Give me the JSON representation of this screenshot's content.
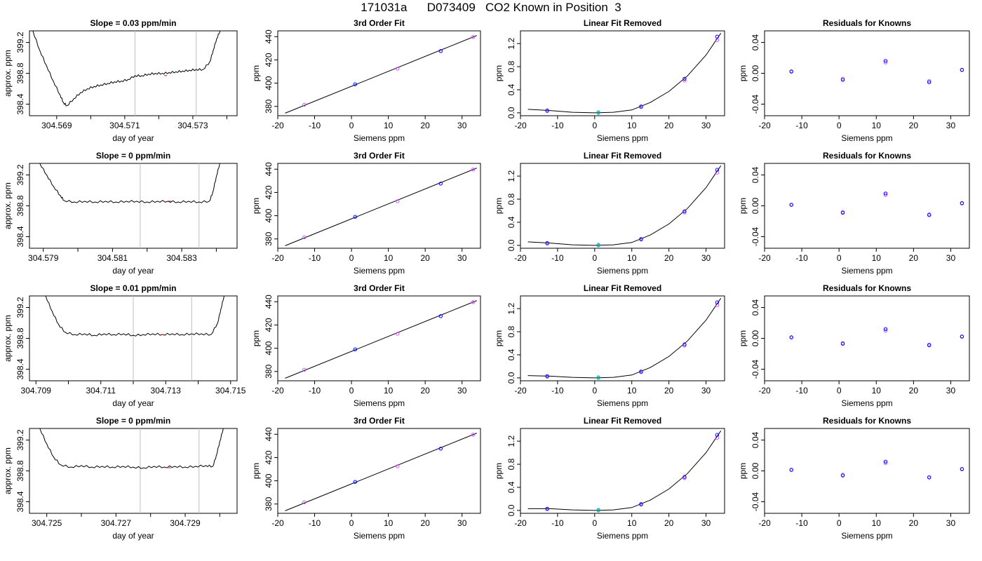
{
  "page": {
    "title": "171031a      D073409   CO2 Known in Position  3"
  },
  "chart_data": [
    {
      "row": 1,
      "col": 1,
      "type": "line",
      "title": "Slope =  0.03  ppm/min",
      "xlabel": "day of year",
      "ylabel": "approx. ppm",
      "xlim": [
        304.5682,
        304.5743
      ],
      "ylim": [
        398.25,
        399.35
      ],
      "xticks": [
        304.569,
        304.57,
        304.571,
        304.572,
        304.573,
        304.574
      ],
      "xtick_labels": [
        "304.569",
        "",
        "304.571",
        "",
        "304.573",
        ""
      ],
      "yticks": [
        398.4,
        398.8,
        399.2
      ],
      "ytick_labels": [
        "398.4",
        "398.8",
        "399.2"
      ],
      "vlines": [
        304.5713,
        304.5731
      ],
      "x": [
        304.5693,
        304.5695,
        304.5697,
        304.5699,
        304.5701,
        304.5703,
        304.5705,
        304.5707,
        304.5709,
        304.5711,
        304.5713,
        304.5715,
        304.5717,
        304.5719,
        304.5721,
        304.5723,
        304.5725,
        304.5727,
        304.5729,
        304.5731,
        304.5733
      ],
      "y": [
        398.38,
        398.47,
        398.55,
        398.6,
        398.63,
        398.65,
        398.67,
        398.69,
        398.7,
        398.72,
        398.77,
        398.77,
        398.79,
        398.8,
        398.8,
        398.81,
        398.82,
        398.83,
        398.84,
        398.85,
        398.85
      ],
      "pre": {
        "x": [
          304.5683,
          304.5685,
          304.5687,
          304.5689,
          304.5691,
          304.5692,
          304.5693
        ],
        "y": [
          399.35,
          399.1,
          398.9,
          398.7,
          398.52,
          398.42,
          398.38
        ]
      },
      "post": {
        "x": [
          304.5733,
          304.5735,
          304.5736,
          304.5737,
          304.5738
        ],
        "y": [
          398.85,
          398.95,
          399.1,
          399.25,
          399.35
        ]
      }
    },
    {
      "row": 1,
      "col": 2,
      "type": "scatter",
      "title": "3rd Order Fit",
      "xlabel": "Siemens ppm",
      "ylabel": "ppm",
      "xlim": [
        -20,
        35
      ],
      "ylim": [
        372,
        445
      ],
      "xticks": [
        -20,
        -10,
        0,
        10,
        20,
        30
      ],
      "yticks": [
        380,
        400,
        420,
        440
      ],
      "x": [
        -12.8,
        1.0,
        12.5,
        24.2,
        33.0
      ],
      "y": [
        381.5,
        399.0,
        412.5,
        427.6,
        439.7
      ],
      "fit": {
        "x": [
          -18,
          34
        ],
        "y": [
          374.2,
          441.0
        ]
      }
    },
    {
      "row": 1,
      "col": 3,
      "type": "scatter",
      "title": "Linear Fit Removed",
      "xlabel": "Siemens ppm",
      "ylabel": "ppm",
      "xlim": [
        -20,
        35
      ],
      "ylim": [
        -0.05,
        1.42
      ],
      "xticks": [
        -20,
        -10,
        0,
        10,
        20,
        30
      ],
      "yticks": [
        0.0,
        0.4,
        0.8,
        1.2
      ],
      "x": [
        -12.8,
        -12.8,
        1.0,
        1.0,
        12.5,
        12.5,
        24.2,
        24.2,
        33.0,
        33.0
      ],
      "y": [
        0.03,
        0.04,
        0.0,
        0.01,
        0.1,
        0.11,
        0.56,
        0.59,
        1.26,
        1.32
      ],
      "fit": {
        "x": [
          -18,
          -12,
          -6,
          0,
          5,
          10,
          15,
          20,
          25,
          30,
          34
        ],
        "y": [
          0.06,
          0.04,
          0.01,
          0.0,
          0.01,
          0.05,
          0.18,
          0.37,
          0.64,
          1.0,
          1.38
        ]
      }
    },
    {
      "row": 1,
      "col": 4,
      "type": "scatter",
      "title": "Residuals for Knowns",
      "xlabel": "Siemens ppm",
      "ylabel": "ppm",
      "xlim": [
        -20,
        35
      ],
      "ylim": [
        -0.055,
        0.055
      ],
      "xticks": [
        -20,
        -10,
        0,
        10,
        20,
        30
      ],
      "yticks": [
        -0.04,
        0.0,
        0.04
      ],
      "x": [
        -12.8,
        -12.8,
        1.0,
        1.0,
        12.5,
        12.5,
        24.2,
        24.2,
        33.0,
        33.0
      ],
      "y": [
        0.002,
        0.0025,
        -0.007,
        -0.0085,
        0.014,
        0.016,
        -0.01,
        -0.0115,
        0.004,
        0.0045
      ]
    },
    {
      "row": 2,
      "col": 1,
      "type": "line",
      "title": "Slope =  0  ppm/min",
      "xlabel": "day of year",
      "ylabel": "approx. ppm",
      "xlim": [
        304.5786,
        304.5846
      ],
      "ylim": [
        398.25,
        399.35
      ],
      "xticks": [
        304.579,
        304.58,
        304.581,
        304.582,
        304.583,
        304.584
      ],
      "xtick_labels": [
        "304.579",
        "",
        "304.581",
        "",
        "304.583",
        ""
      ],
      "yticks": [
        398.4,
        398.8,
        399.2
      ],
      "ytick_labels": [
        "398.4",
        "398.8",
        "399.2"
      ],
      "vlines": [
        304.5818,
        304.5835
      ],
      "x": [
        304.5796,
        304.5799,
        304.5802,
        304.5805,
        304.5808,
        304.5811,
        304.5814,
        304.5817,
        304.582,
        304.5823,
        304.5826,
        304.5829,
        304.5832,
        304.5835,
        304.5838
      ],
      "y": [
        398.87,
        398.85,
        398.86,
        398.85,
        398.86,
        398.85,
        398.86,
        398.86,
        398.85,
        398.86,
        398.86,
        398.85,
        398.86,
        398.85,
        398.86
      ],
      "pre": {
        "x": [
          304.5789,
          304.5791,
          304.5793,
          304.5795,
          304.5796
        ],
        "y": [
          399.35,
          399.2,
          399.05,
          398.93,
          398.87
        ]
      },
      "post": {
        "x": [
          304.5838,
          304.5839,
          304.584,
          304.5841
        ],
        "y": [
          398.86,
          398.98,
          399.18,
          399.35
        ]
      }
    },
    {
      "row": 2,
      "col": 2,
      "type": "scatter",
      "title": "3rd Order Fit",
      "xlabel": "Siemens ppm",
      "ylabel": "ppm",
      "xlim": [
        -20,
        35
      ],
      "ylim": [
        372,
        445
      ],
      "xticks": [
        -20,
        -10,
        0,
        10,
        20,
        30
      ],
      "yticks": [
        380,
        400,
        420,
        440
      ],
      "x": [
        -12.8,
        1.0,
        12.5,
        24.2,
        33.0
      ],
      "y": [
        381.5,
        399.0,
        412.5,
        427.6,
        439.7
      ],
      "fit": {
        "x": [
          -18,
          34
        ],
        "y": [
          374.2,
          441.0
        ]
      }
    },
    {
      "row": 2,
      "col": 3,
      "type": "scatter",
      "title": "Linear Fit Removed",
      "xlabel": "Siemens ppm",
      "ylabel": "ppm",
      "xlim": [
        -20,
        35
      ],
      "ylim": [
        -0.05,
        1.42
      ],
      "xticks": [
        -20,
        -10,
        0,
        10,
        20,
        30
      ],
      "yticks": [
        0.0,
        0.4,
        0.8,
        1.2
      ],
      "x": [
        -12.8,
        -12.8,
        1.0,
        1.0,
        12.5,
        12.5,
        24.2,
        24.2,
        33.0,
        33.0
      ],
      "y": [
        0.03,
        0.04,
        0.0,
        0.01,
        0.1,
        0.11,
        0.57,
        0.59,
        1.26,
        1.31
      ],
      "fit": {
        "x": [
          -18,
          -12,
          -6,
          0,
          5,
          10,
          15,
          20,
          25,
          30,
          34
        ],
        "y": [
          0.06,
          0.04,
          0.01,
          0.0,
          0.01,
          0.05,
          0.18,
          0.37,
          0.64,
          1.0,
          1.38
        ]
      }
    },
    {
      "row": 2,
      "col": 4,
      "type": "scatter",
      "title": "Residuals for Knowns",
      "xlabel": "Siemens ppm",
      "ylabel": "ppm",
      "xlim": [
        -20,
        35
      ],
      "ylim": [
        -0.055,
        0.055
      ],
      "xticks": [
        -20,
        -10,
        0,
        10,
        20,
        30
      ],
      "yticks": [
        -0.04,
        0.0,
        0.04
      ],
      "x": [
        -12.8,
        -12.8,
        1.0,
        1.0,
        12.5,
        12.5,
        24.2,
        24.2,
        33.0,
        33.0
      ],
      "y": [
        0.001,
        0.0015,
        -0.008,
        -0.009,
        0.014,
        0.016,
        -0.011,
        -0.012,
        0.003,
        0.0035
      ]
    },
    {
      "row": 3,
      "col": 1,
      "type": "line",
      "title": "Slope =  0.01  ppm/min",
      "xlabel": "day of year",
      "ylabel": "approx. ppm",
      "xlim": [
        304.7088,
        304.7152
      ],
      "ylim": [
        398.25,
        399.35
      ],
      "xticks": [
        304.709,
        304.71,
        304.711,
        304.712,
        304.713,
        304.714,
        304.715
      ],
      "xtick_labels": [
        "304.709",
        "",
        "304.711",
        "",
        "304.713",
        "",
        "304.715"
      ],
      "yticks": [
        398.4,
        398.8,
        399.2
      ],
      "ytick_labels": [
        "398.4",
        "398.8",
        "399.2"
      ],
      "vlines": [
        304.712,
        304.7138
      ],
      "x": [
        304.7099,
        304.7102,
        304.7105,
        304.7108,
        304.7111,
        304.7114,
        304.7117,
        304.712,
        304.7123,
        304.7126,
        304.7129,
        304.7132,
        304.7135,
        304.7138,
        304.7141,
        304.7144
      ],
      "y": [
        398.88,
        398.85,
        398.86,
        398.84,
        398.86,
        398.85,
        398.86,
        398.84,
        398.85,
        398.86,
        398.85,
        398.86,
        398.85,
        398.86,
        398.86,
        398.85
      ],
      "pre": {
        "x": [
          304.7093,
          304.7095,
          304.7097,
          304.7099
        ],
        "y": [
          399.35,
          399.15,
          398.98,
          398.88
        ]
      },
      "post": {
        "x": [
          304.7144,
          304.7146,
          304.7147,
          304.7148
        ],
        "y": [
          398.85,
          399.0,
          399.18,
          399.35
        ]
      }
    },
    {
      "row": 3,
      "col": 2,
      "type": "scatter",
      "title": "3rd Order Fit",
      "xlabel": "Siemens ppm",
      "ylabel": "ppm",
      "xlim": [
        -20,
        35
      ],
      "ylim": [
        372,
        445
      ],
      "xticks": [
        -20,
        -10,
        0,
        10,
        20,
        30
      ],
      "yticks": [
        380,
        400,
        420,
        440
      ],
      "x": [
        -12.8,
        1.0,
        12.5,
        24.2,
        33.0
      ],
      "y": [
        381.5,
        399.0,
        412.5,
        427.6,
        439.7
      ],
      "fit": {
        "x": [
          -18,
          34
        ],
        "y": [
          374.2,
          441.0
        ]
      }
    },
    {
      "row": 3,
      "col": 3,
      "type": "scatter",
      "title": "Linear Fit Removed",
      "xlabel": "Siemens ppm",
      "ylabel": "ppm",
      "xlim": [
        -20,
        35
      ],
      "ylim": [
        -0.05,
        1.42
      ],
      "xticks": [
        -20,
        -10,
        0,
        10,
        20,
        30
      ],
      "yticks": [
        0.0,
        0.4,
        0.8,
        1.2
      ],
      "x": [
        -12.8,
        -12.8,
        1.0,
        1.0,
        12.5,
        12.5,
        24.2,
        24.2,
        33.0,
        33.0
      ],
      "y": [
        0.02,
        0.03,
        0.0,
        0.01,
        0.1,
        0.11,
        0.56,
        0.58,
        1.26,
        1.31
      ],
      "fit": {
        "x": [
          -18,
          -12,
          -6,
          0,
          5,
          10,
          15,
          20,
          25,
          30,
          34
        ],
        "y": [
          0.04,
          0.03,
          0.01,
          0.0,
          0.01,
          0.05,
          0.18,
          0.37,
          0.64,
          1.0,
          1.38
        ]
      }
    },
    {
      "row": 3,
      "col": 4,
      "type": "scatter",
      "title": "Residuals for Knowns",
      "xlabel": "Siemens ppm",
      "ylabel": "ppm",
      "xlim": [
        -20,
        35
      ],
      "ylim": [
        -0.055,
        0.055
      ],
      "xticks": [
        -20,
        -10,
        0,
        10,
        20,
        30
      ],
      "yticks": [
        -0.04,
        0.0,
        0.04
      ],
      "x": [
        -12.8,
        -12.8,
        1.0,
        1.0,
        12.5,
        12.5,
        24.2,
        24.2,
        33.0,
        33.0
      ],
      "y": [
        0.001,
        0.0015,
        -0.006,
        -0.007,
        0.01,
        0.012,
        -0.008,
        -0.009,
        0.002,
        0.0025
      ]
    },
    {
      "row": 4,
      "col": 1,
      "type": "line",
      "title": "Slope =  0  ppm/min",
      "xlabel": "day of year",
      "ylabel": "approx. ppm",
      "xlim": [
        304.7245,
        304.7305
      ],
      "ylim": [
        398.25,
        399.35
      ],
      "xticks": [
        304.725,
        304.726,
        304.727,
        304.728,
        304.729,
        304.73
      ],
      "xtick_labels": [
        "304.725",
        "",
        "304.727",
        "",
        "304.729",
        ""
      ],
      "yticks": [
        398.4,
        398.8,
        399.2
      ],
      "ytick_labels": [
        "398.4",
        "398.8",
        "399.2"
      ],
      "vlines": [
        304.7277,
        304.7294
      ],
      "x": [
        304.7254,
        304.7257,
        304.726,
        304.7263,
        304.7266,
        304.7269,
        304.7272,
        304.7275,
        304.7278,
        304.7281,
        304.7284,
        304.7287,
        304.729,
        304.7293,
        304.7296,
        304.7298
      ],
      "y": [
        398.88,
        398.85,
        398.87,
        398.85,
        398.86,
        398.85,
        398.86,
        398.85,
        398.84,
        398.86,
        398.85,
        398.86,
        398.85,
        398.86,
        398.87,
        398.86
      ],
      "pre": {
        "x": [
          304.7248,
          304.725,
          304.7252,
          304.7254
        ],
        "y": [
          399.35,
          399.15,
          398.98,
          398.88
        ]
      },
      "post": {
        "x": [
          304.7298,
          304.7299,
          304.73,
          304.7301
        ],
        "y": [
          398.86,
          399.0,
          399.18,
          399.35
        ]
      }
    },
    {
      "row": 4,
      "col": 2,
      "type": "scatter",
      "title": "3rd Order Fit",
      "xlabel": "Siemens ppm",
      "ylabel": "ppm",
      "xlim": [
        -20,
        35
      ],
      "ylim": [
        372,
        445
      ],
      "xticks": [
        -20,
        -10,
        0,
        10,
        20,
        30
      ],
      "yticks": [
        380,
        400,
        420,
        440
      ],
      "x": [
        -12.8,
        1.0,
        12.5,
        24.2,
        33.0
      ],
      "y": [
        381.5,
        399.0,
        412.5,
        427.6,
        439.7
      ],
      "fit": {
        "x": [
          -18,
          34
        ],
        "y": [
          374.2,
          441.0
        ]
      }
    },
    {
      "row": 4,
      "col": 3,
      "type": "scatter",
      "title": "Linear Fit Removed",
      "xlabel": "Siemens ppm",
      "ylabel": "ppm",
      "xlim": [
        -20,
        35
      ],
      "ylim": [
        -0.05,
        1.42
      ],
      "xticks": [
        -20,
        -10,
        0,
        10,
        20,
        30
      ],
      "yticks": [
        0.0,
        0.4,
        0.8,
        1.2
      ],
      "x": [
        -12.8,
        -12.8,
        1.0,
        1.0,
        12.5,
        12.5,
        24.2,
        24.2,
        33.0,
        33.0
      ],
      "y": [
        0.02,
        0.03,
        0.0,
        0.01,
        0.1,
        0.11,
        0.56,
        0.58,
        1.26,
        1.31
      ],
      "fit": {
        "x": [
          -18,
          -12,
          -6,
          0,
          5,
          10,
          15,
          20,
          25,
          30,
          34
        ],
        "y": [
          0.03,
          0.03,
          0.01,
          0.0,
          0.01,
          0.05,
          0.18,
          0.37,
          0.64,
          1.0,
          1.38
        ]
      }
    },
    {
      "row": 4,
      "col": 4,
      "type": "scatter",
      "title": "Residuals for Knowns",
      "xlabel": "Siemens ppm",
      "ylabel": "ppm",
      "xlim": [
        -20,
        35
      ],
      "ylim": [
        -0.055,
        0.055
      ],
      "xticks": [
        -20,
        -10,
        0,
        10,
        20,
        30
      ],
      "yticks": [
        -0.04,
        0.0,
        0.04
      ],
      "x": [
        -12.8,
        -12.8,
        1.0,
        1.0,
        12.5,
        12.5,
        24.2,
        24.2,
        33.0,
        33.0
      ],
      "y": [
        0.001,
        0.0015,
        -0.005,
        -0.006,
        0.01,
        0.012,
        -0.008,
        -0.0085,
        0.002,
        0.0025
      ]
    }
  ],
  "colors": {
    "axis": "#000000",
    "line": "#000000",
    "vline": "#bfbfbf",
    "point_blue": "#0000ff",
    "point_violet": "#cc55ff",
    "point_red": "#ff0000",
    "point_teal": "#00bbbb"
  }
}
